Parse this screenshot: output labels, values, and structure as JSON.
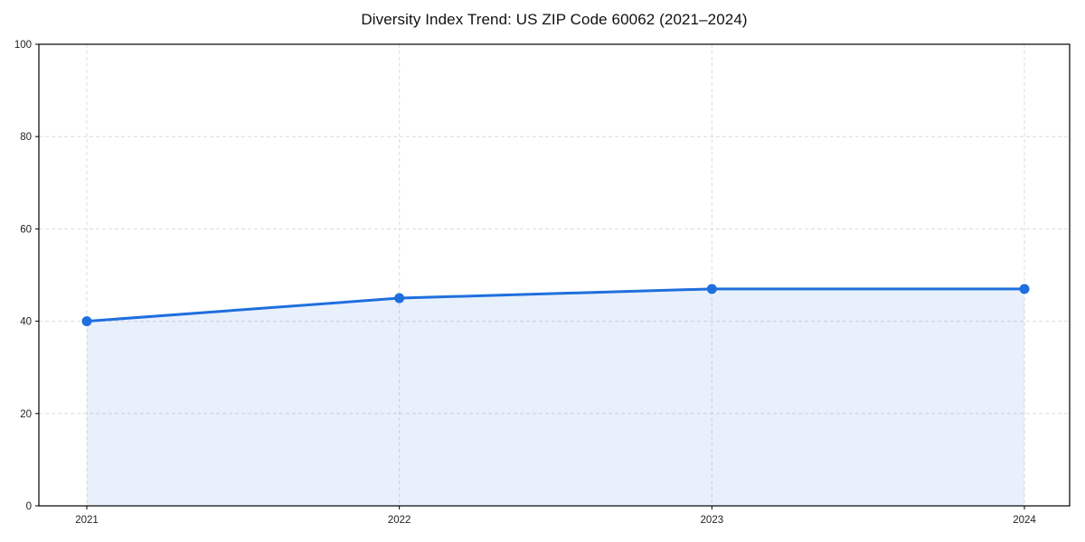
{
  "chart_data": {
    "type": "area",
    "title": "Diversity Index Trend: US ZIP Code 60062 (2021–2024)",
    "categories": [
      "2021",
      "2022",
      "2023",
      "2024"
    ],
    "series": [
      {
        "name": "Diversity Index",
        "values": [
          40,
          45,
          47,
          47
        ]
      }
    ],
    "xlabel": "",
    "ylabel": "",
    "ylim": [
      0,
      100
    ],
    "yticks": [
      0,
      20,
      40,
      60,
      80,
      100
    ],
    "grid": true,
    "grid_style": "dashed",
    "legend_position": "none",
    "colors": {
      "line": "#1f6fde",
      "marker": "#1f6fde",
      "fill": "#1f6fde",
      "fill_opacity": 0.1,
      "grid": "#dcdcdc",
      "axis": "#000000",
      "tick_label": "#222222",
      "title": "#111111",
      "background": "#ffffff"
    }
  }
}
